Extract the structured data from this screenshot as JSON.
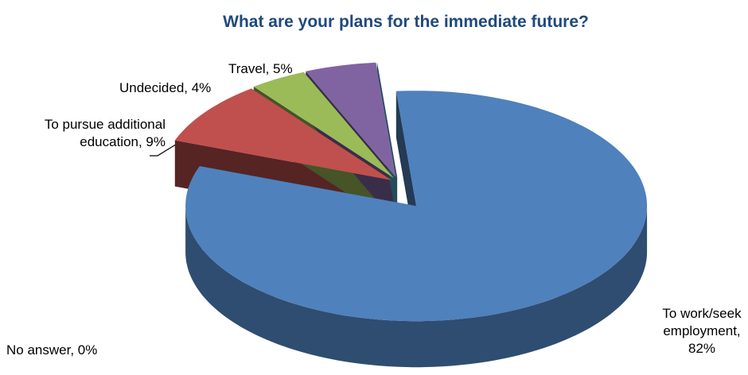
{
  "chart_data": {
    "type": "pie3d",
    "title": "What are your plans for the immediate future?",
    "labels": [
      "To work/seek employment, 82%",
      "To pursue additional education, 9%",
      "Undecided, 4%",
      "Travel, 5%",
      "No answer, 0%"
    ],
    "values": [
      82,
      9,
      4,
      5,
      0
    ],
    "colors": [
      "#4f81bd",
      "#c0504d",
      "#9bbb59",
      "#8064a2",
      "#4bacc6"
    ]
  }
}
